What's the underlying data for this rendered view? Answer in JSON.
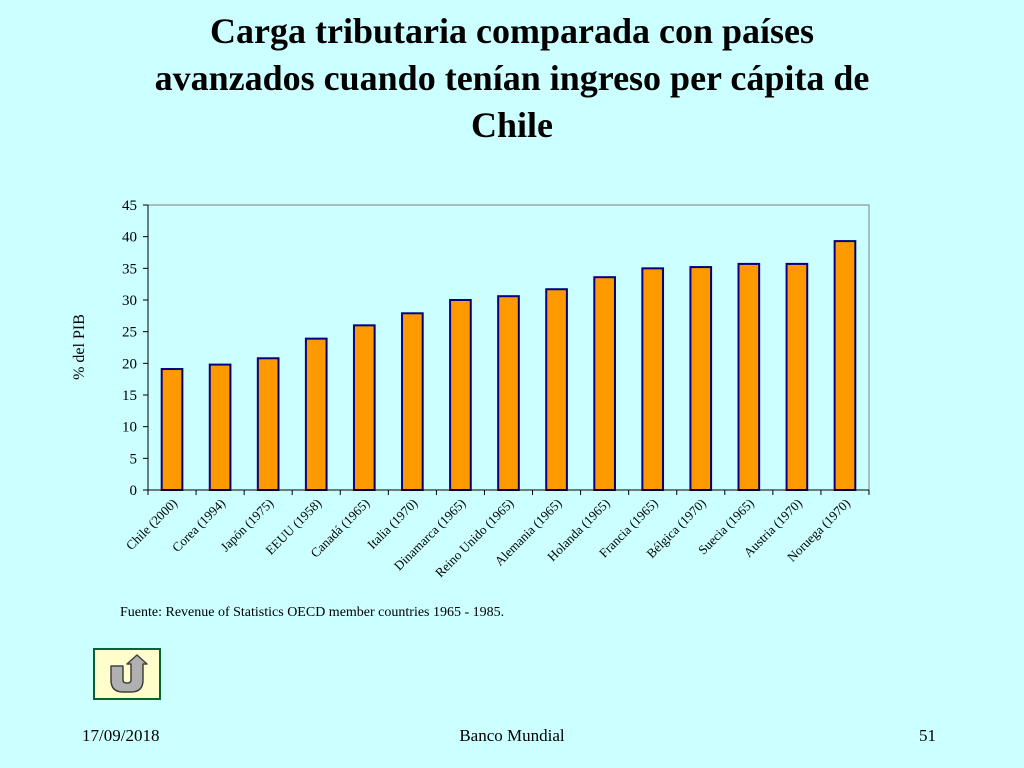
{
  "slide": {
    "title_lines": [
      "Carga tributaria comparada con países",
      "avanzados cuando tenían ingreso per cápita de",
      "Chile"
    ],
    "source": "Fuente: Revenue of Statistics OECD member countries 1965 - 1985.",
    "footer_date": "17/09/2018",
    "footer_center": "Banco Mundial",
    "footer_page": "51",
    "back_button_icon": "u-turn-arrow-icon"
  },
  "chart_data": {
    "type": "bar",
    "title": "",
    "ylabel": "% del PIB",
    "xlabel": "",
    "ylim": [
      0,
      45
    ],
    "yticks": [
      0,
      5,
      10,
      15,
      20,
      25,
      30,
      35,
      40,
      45
    ],
    "categories": [
      "Chile (2000)",
      "Corea (1994)",
      "Japón (1975)",
      "EEUU (1958)",
      "Canadá (1965)",
      "Italia (1970)",
      "Dinamarca (1965)",
      "Reino Unido (1965)",
      "Alemania (1965)",
      "Holanda (1965)",
      "Francia (1965)",
      "Bélgica (1970)",
      "Suecia (1965)",
      "Austria (1970)",
      "Noruega (1970)"
    ],
    "values": [
      19.1,
      19.8,
      20.8,
      23.9,
      26.0,
      27.9,
      30.0,
      30.6,
      31.7,
      33.6,
      35.0,
      35.2,
      35.7,
      35.7,
      39.3
    ],
    "bar_color": "#ff9900",
    "bar_outline": "#000080",
    "grid": false,
    "legend": "none"
  }
}
